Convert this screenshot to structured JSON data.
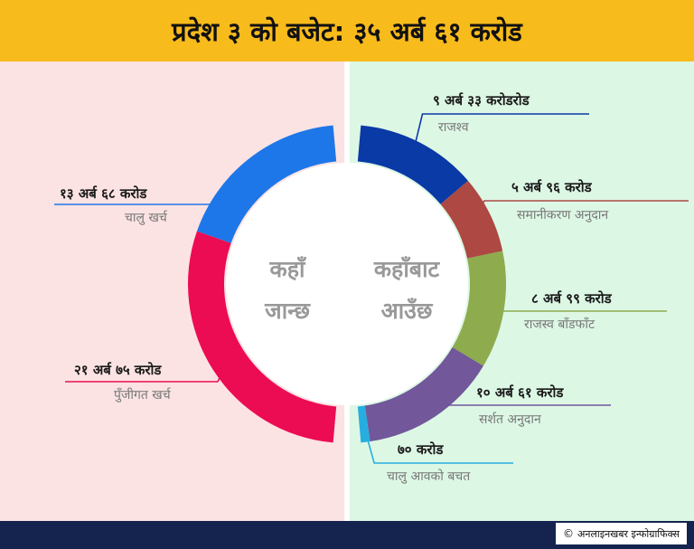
{
  "header": {
    "title": "प्रदेश ३ को बजेट: ३५ अर्ब ६१ करोड"
  },
  "center": {
    "left_line1": "कहाँ",
    "left_line2": "जान्छ",
    "right_line1": "कहाँबाट",
    "right_line2": "आउँछ"
  },
  "footer": {
    "credit_icon": "copyright-icon",
    "credit": "अनलाइनखबर इन्फोग्राफिक्स"
  },
  "chart_data": [
    {
      "type": "donut-half",
      "side": "left",
      "center_label": [
        "कहाँ",
        "जान्छ"
      ],
      "series": [
        {
          "category": "चालु खर्च",
          "value_label": "१३ अर्ब ६८ करोड",
          "value": 13.68,
          "unit": "अर्ब",
          "color": "#1e77e8"
        },
        {
          "category": "पुँजीगत खर्च",
          "value_label": "२१ अर्ब ७५ करोड",
          "value": 21.75,
          "unit": "अर्ब",
          "color": "#ec0c54"
        }
      ]
    },
    {
      "type": "donut-half",
      "side": "right",
      "center_label": [
        "कहाँबाट",
        "आउँछ"
      ],
      "series": [
        {
          "category": "राजश्व",
          "value_label": "९ अर्ब ३३ करोडरोड",
          "value": 9.33,
          "unit": "अर्ब",
          "color": "#0a3aa6"
        },
        {
          "category": "समानीकरण अनुदान",
          "value_label": "५ अर्ब ९६ करोड",
          "value": 5.96,
          "unit": "अर्ब",
          "color": "#ad4843"
        },
        {
          "category": "राजस्व बाँडफाँट",
          "value_label": "८ अर्ब ९९ करोड",
          "value": 8.99,
          "unit": "अर्ब",
          "color": "#8eab4e"
        },
        {
          "category": "सर्शत अनुदान",
          "value_label": "१० अर्ब ६१ करोड",
          "value": 10.61,
          "unit": "अर्ब",
          "color": "#72579b"
        },
        {
          "category": "चालु आवको बचत",
          "value_label": "७० करोड",
          "value": 0.7,
          "unit": "अर्ब",
          "color": "#27aee0"
        }
      ]
    }
  ]
}
